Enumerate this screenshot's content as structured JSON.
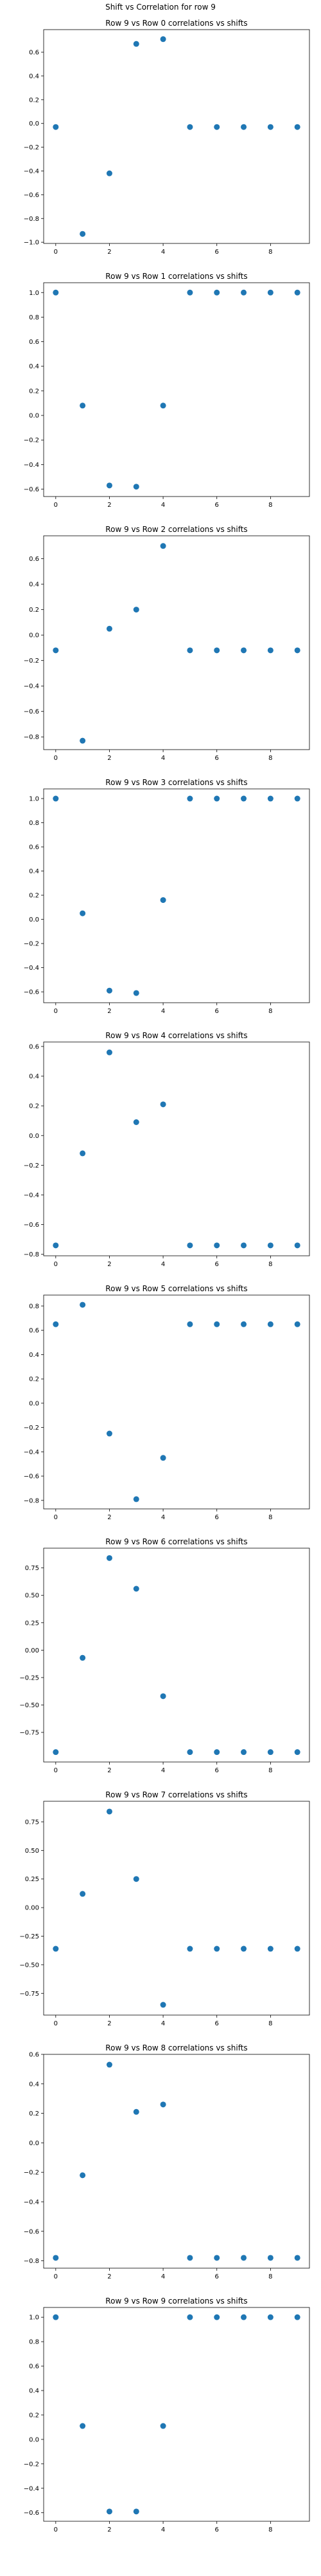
{
  "figure_title": "Shift vs Correlation for row 9",
  "colors": {
    "marker": "#1f77b4"
  },
  "chart_data": [
    {
      "type": "scatter",
      "title": "Row 9 vs Row 0 correlations vs shifts",
      "x": [
        0,
        1,
        2,
        3,
        4,
        5,
        6,
        7,
        8,
        9
      ],
      "y": [
        -0.03,
        -0.93,
        -0.42,
        0.67,
        0.71,
        -0.03,
        -0.03,
        -0.03,
        -0.03,
        -0.03
      ],
      "xlim": [
        -0.45,
        9.45
      ],
      "ylim": [
        -1.01,
        0.79
      ],
      "xticks": [
        0,
        2,
        4,
        6,
        8
      ],
      "yticks": [
        -1.0,
        -0.8,
        -0.6,
        -0.4,
        -0.2,
        0.0,
        0.2,
        0.4,
        0.6
      ],
      "ytick_labels": [
        "−1.0",
        "−0.8",
        "−0.6",
        "−0.4",
        "−0.2",
        "0.0",
        "0.2",
        "0.4",
        "0.6"
      ]
    },
    {
      "type": "scatter",
      "title": "Row 9 vs Row 1 correlations vs shifts",
      "x": [
        0,
        1,
        2,
        3,
        4,
        5,
        6,
        7,
        8,
        9
      ],
      "y": [
        1.0,
        0.08,
        -0.57,
        -0.58,
        0.08,
        1.0,
        1.0,
        1.0,
        1.0,
        1.0
      ],
      "xlim": [
        -0.45,
        9.45
      ],
      "ylim": [
        -0.66,
        1.08
      ],
      "xticks": [
        0,
        2,
        4,
        6,
        8
      ],
      "yticks": [
        -0.6,
        -0.4,
        -0.2,
        0.0,
        0.2,
        0.4,
        0.6,
        0.8,
        1.0
      ],
      "ytick_labels": [
        "−0.6",
        "−0.4",
        "−0.2",
        "0.0",
        "0.2",
        "0.4",
        "0.6",
        "0.8",
        "1.0"
      ]
    },
    {
      "type": "scatter",
      "title": "Row 9 vs Row 2 correlations vs shifts",
      "x": [
        0,
        1,
        2,
        3,
        4,
        5,
        6,
        7,
        8,
        9
      ],
      "y": [
        -0.12,
        -0.83,
        0.05,
        0.2,
        0.7,
        -0.12,
        -0.12,
        -0.12,
        -0.12,
        -0.12
      ],
      "xlim": [
        -0.45,
        9.45
      ],
      "ylim": [
        -0.9,
        0.78
      ],
      "xticks": [
        0,
        2,
        4,
        6,
        8
      ],
      "yticks": [
        -0.8,
        -0.6,
        -0.4,
        -0.2,
        0.0,
        0.2,
        0.4,
        0.6
      ],
      "ytick_labels": [
        "−0.8",
        "−0.6",
        "−0.4",
        "−0.2",
        "0.0",
        "0.2",
        "0.4",
        "0.6"
      ]
    },
    {
      "type": "scatter",
      "title": "Row 9 vs Row 3 correlations vs shifts",
      "x": [
        0,
        1,
        2,
        3,
        4,
        5,
        6,
        7,
        8,
        9
      ],
      "y": [
        1.0,
        0.05,
        -0.59,
        -0.61,
        0.16,
        1.0,
        1.0,
        1.0,
        1.0,
        1.0
      ],
      "xlim": [
        -0.45,
        9.45
      ],
      "ylim": [
        -0.69,
        1.08
      ],
      "xticks": [
        0,
        2,
        4,
        6,
        8
      ],
      "yticks": [
        -0.6,
        -0.4,
        -0.2,
        0.0,
        0.2,
        0.4,
        0.6,
        0.8,
        1.0
      ],
      "ytick_labels": [
        "−0.6",
        "−0.4",
        "−0.2",
        "0.0",
        "0.2",
        "0.4",
        "0.6",
        "0.8",
        "1.0"
      ]
    },
    {
      "type": "scatter",
      "title": "Row 9 vs Row 4 correlations vs shifts",
      "x": [
        0,
        1,
        2,
        3,
        4,
        5,
        6,
        7,
        8,
        9
      ],
      "y": [
        -0.74,
        -0.12,
        0.56,
        0.09,
        0.21,
        -0.74,
        -0.74,
        -0.74,
        -0.74,
        -0.74
      ],
      "xlim": [
        -0.45,
        9.45
      ],
      "ylim": [
        -0.81,
        0.63
      ],
      "xticks": [
        0,
        2,
        4,
        6,
        8
      ],
      "yticks": [
        -0.8,
        -0.6,
        -0.4,
        -0.2,
        0.0,
        0.2,
        0.4,
        0.6
      ],
      "ytick_labels": [
        "−0.8",
        "−0.6",
        "−0.4",
        "−0.2",
        "0.0",
        "0.2",
        "0.4",
        "0.6"
      ]
    },
    {
      "type": "scatter",
      "title": "Row 9 vs Row 5 correlations vs shifts",
      "x": [
        0,
        1,
        2,
        3,
        4,
        5,
        6,
        7,
        8,
        9
      ],
      "y": [
        0.65,
        0.81,
        -0.25,
        -0.79,
        -0.45,
        0.65,
        0.65,
        0.65,
        0.65,
        0.65
      ],
      "xlim": [
        -0.45,
        9.45
      ],
      "ylim": [
        -0.87,
        0.89
      ],
      "xticks": [
        0,
        2,
        4,
        6,
        8
      ],
      "yticks": [
        -0.8,
        -0.6,
        -0.4,
        -0.2,
        0.0,
        0.2,
        0.4,
        0.6,
        0.8
      ],
      "ytick_labels": [
        "−0.8",
        "−0.6",
        "−0.4",
        "−0.2",
        "0.0",
        "0.2",
        "0.4",
        "0.6",
        "0.8"
      ]
    },
    {
      "type": "scatter",
      "title": "Row 9 vs Row 6 correlations vs shifts",
      "x": [
        0,
        1,
        2,
        3,
        4,
        5,
        6,
        7,
        8,
        9
      ],
      "y": [
        -0.93,
        -0.07,
        0.84,
        0.56,
        -0.42,
        -0.93,
        -0.93,
        -0.93,
        -0.93,
        -0.93
      ],
      "xlim": [
        -0.45,
        9.45
      ],
      "ylim": [
        -1.02,
        0.93
      ],
      "xticks": [
        0,
        2,
        4,
        6,
        8
      ],
      "yticks": [
        -0.75,
        -0.5,
        -0.25,
        0.0,
        0.25,
        0.5,
        0.75
      ],
      "ytick_labels": [
        "−0.75",
        "−0.50",
        "−0.25",
        "0.00",
        "0.25",
        "0.50",
        "0.75"
      ]
    },
    {
      "type": "scatter",
      "title": "Row 9 vs Row 7 correlations vs shifts",
      "x": [
        0,
        1,
        2,
        3,
        4,
        5,
        6,
        7,
        8,
        9
      ],
      "y": [
        -0.36,
        0.12,
        0.84,
        0.25,
        -0.85,
        -0.36,
        -0.36,
        -0.36,
        -0.36,
        -0.36
      ],
      "xlim": [
        -0.45,
        9.45
      ],
      "ylim": [
        -0.94,
        0.93
      ],
      "xticks": [
        0,
        2,
        4,
        6,
        8
      ],
      "yticks": [
        -0.75,
        -0.5,
        -0.25,
        0.0,
        0.25,
        0.5,
        0.75
      ],
      "ytick_labels": [
        "−0.75",
        "−0.50",
        "−0.25",
        "0.00",
        "0.25",
        "0.50",
        "0.75"
      ]
    },
    {
      "type": "scatter",
      "title": "Row 9 vs Row 8 correlations vs shifts",
      "x": [
        0,
        1,
        2,
        3,
        4,
        5,
        6,
        7,
        8,
        9
      ],
      "y": [
        -0.78,
        -0.22,
        0.53,
        0.21,
        0.26,
        -0.78,
        -0.78,
        -0.78,
        -0.78,
        -0.78
      ],
      "xlim": [
        -0.45,
        9.45
      ],
      "ylim": [
        -0.85,
        0.6
      ],
      "xticks": [
        0,
        2,
        4,
        6,
        8
      ],
      "yticks": [
        -0.8,
        -0.6,
        -0.4,
        -0.2,
        0.0,
        0.2,
        0.4,
        0.6
      ],
      "ytick_labels": [
        "−0.8",
        "−0.6",
        "−0.4",
        "−0.2",
        "0.0",
        "0.2",
        "0.4",
        "0.6"
      ]
    },
    {
      "type": "scatter",
      "title": "Row 9 vs Row 9 correlations vs shifts",
      "x": [
        0,
        1,
        2,
        3,
        4,
        5,
        6,
        7,
        8,
        9
      ],
      "y": [
        1.0,
        0.11,
        -0.59,
        -0.59,
        0.11,
        1.0,
        1.0,
        1.0,
        1.0,
        1.0
      ],
      "xlim": [
        -0.45,
        9.45
      ],
      "ylim": [
        -0.67,
        1.08
      ],
      "xticks": [
        0,
        2,
        4,
        6,
        8
      ],
      "yticks": [
        -0.6,
        -0.4,
        -0.2,
        0.0,
        0.2,
        0.4,
        0.6,
        0.8,
        1.0
      ],
      "ytick_labels": [
        "−0.6",
        "−0.4",
        "−0.2",
        "0.0",
        "0.2",
        "0.4",
        "0.6",
        "0.8",
        "1.0"
      ]
    }
  ]
}
